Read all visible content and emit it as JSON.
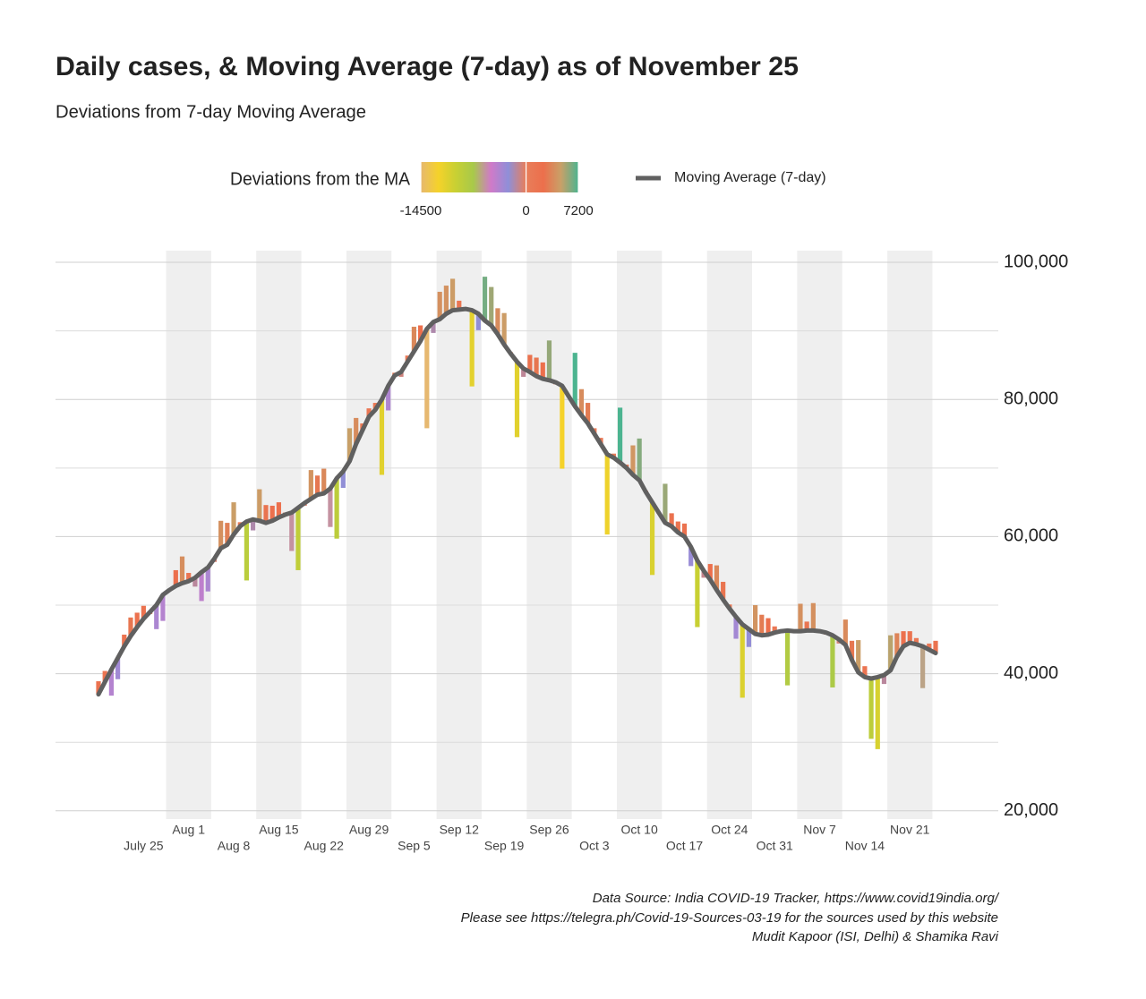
{
  "chart_data": {
    "type": "deviation",
    "title": "Daily cases, & Moving Average (7-day) as of November 25",
    "subtitle": "Deviations from 7-day Moving Average",
    "categories": [
      null,
      null,
      null,
      null,
      null,
      null,
      null,
      "July 25",
      null,
      null,
      null,
      null,
      null,
      null,
      "Aug 1",
      null,
      null,
      null,
      null,
      null,
      null,
      "Aug 8",
      null,
      null,
      null,
      null,
      null,
      null,
      "Aug 15",
      null,
      null,
      null,
      null,
      null,
      null,
      "Aug 22",
      null,
      null,
      null,
      null,
      null,
      null,
      "Aug 29",
      null,
      null,
      null,
      null,
      null,
      null,
      "Sep 5",
      null,
      null,
      null,
      null,
      null,
      null,
      "Sep 12",
      null,
      null,
      null,
      null,
      null,
      null,
      "Sep 19",
      null,
      null,
      null,
      null,
      null,
      null,
      "Sep 26",
      null,
      null,
      null,
      null,
      null,
      null,
      "Oct 3",
      null,
      null,
      null,
      null,
      null,
      null,
      "Oct 10",
      null,
      null,
      null,
      null,
      null,
      null,
      "Oct 17",
      null,
      null,
      null,
      null,
      null,
      null,
      "Oct 24",
      null,
      null,
      null,
      null,
      null,
      null,
      "Oct 31",
      null,
      null,
      null,
      null,
      null,
      null,
      "Nov 7",
      null,
      null,
      null,
      null,
      null,
      null,
      "Nov 14",
      null,
      null,
      null,
      null,
      null,
      null,
      "Nov 21",
      null,
      null,
      null,
      null
    ],
    "values": [
      38900,
      40400,
      36800,
      39200,
      45700,
      48200,
      48900,
      49900,
      48700,
      46500,
      47700,
      52100,
      55100,
      57100,
      54700,
      52700,
      50600,
      52000,
      56300,
      62300,
      62000,
      65000,
      62100,
      53600,
      60900,
      66900,
      64600,
      64500,
      65000,
      63500,
      57900,
      55100,
      64500,
      69700,
      68900,
      69900,
      61400,
      59700,
      67100,
      75800,
      77300,
      76500,
      78700,
      79500,
      69000,
      78400,
      83900,
      83300,
      86400,
      90600,
      90800,
      75800,
      89700,
      95700,
      96600,
      97600,
      94400,
      92900,
      81900,
      90100,
      97900,
      96400,
      93300,
      92600,
      86900,
      74500,
      83300,
      86500,
      86100,
      85400,
      88600,
      82200,
      69900,
      80500,
      86800,
      81500,
      79500,
      75800,
      74400,
      60300,
      72100,
      78800,
      70500,
      73300,
      74300,
      66700,
      54400,
      63500,
      67700,
      63400,
      62200,
      61900,
      55700,
      46800,
      54000,
      56000,
      55800,
      53400,
      50100,
      45100,
      36500,
      43900,
      50000,
      48600,
      48100,
      46900,
      46300,
      38300,
      46100,
      50200,
      47600,
      50300,
      46400,
      45700,
      38000,
      44400,
      47900,
      44800,
      44900,
      41100,
      30500,
      29000,
      38500,
      45600,
      45900,
      46200,
      46200,
      45200,
      37900,
      44400,
      44800
    ],
    "series": [
      {
        "name": "Moving Average (7-day)",
        "color": "#606060",
        "values": [
          37000,
          38800,
          40600,
          42300,
          44000,
          45500,
          46800,
          48000,
          49000,
          50000,
          51500,
          52200,
          52800,
          53200,
          53500,
          54000,
          54800,
          55500,
          56800,
          58300,
          58800,
          60300,
          61500,
          62200,
          62500,
          62300,
          62000,
          62300,
          62800,
          63200,
          63500,
          64200,
          64900,
          65500,
          66100,
          66300,
          67000,
          68500,
          69500,
          71000,
          73500,
          75500,
          77500,
          78500,
          80000,
          82000,
          83500,
          84000,
          85500,
          87000,
          88500,
          90300,
          91300,
          91700,
          92500,
          93000,
          93100,
          93200,
          93000,
          92500,
          91500,
          90800,
          89500,
          88000,
          86700,
          85500,
          84500,
          84000,
          83400,
          83000,
          82800,
          82500,
          82000,
          80500,
          79000,
          77700,
          76500,
          75000,
          73500,
          72000,
          71500,
          70800,
          70000,
          69000,
          68200,
          66500,
          65000,
          63500,
          62000,
          61500,
          60600,
          60000,
          58500,
          56500,
          55000,
          53700,
          52200,
          50800,
          49500,
          48300,
          47200,
          46500,
          45800,
          45600,
          45700,
          46000,
          46200,
          46300,
          46200,
          46200,
          46300,
          46300,
          46200,
          46000,
          45600,
          45000,
          44200,
          42000,
          40200,
          39500,
          39300,
          39500,
          39800,
          40500,
          42500,
          44000,
          44500,
          44300,
          44000,
          43500,
          43000
        ]
      }
    ],
    "colorbar": {
      "title": "Deviations from the MA",
      "lim": [
        -14500,
        7200
      ],
      "ticks": [
        -14500,
        0,
        7200
      ],
      "colors": [
        "#e6b870",
        "#f5d22a",
        "#c8d033",
        "#a8c94a",
        "#d07ac8",
        "#8f8fd8",
        "#e87e5a",
        "#ec6f4c",
        "#c9a068",
        "#4cb490"
      ]
    },
    "ylim": [
      18800,
      101700
    ],
    "yticks": [
      {
        "value": 20000,
        "label": "20,000"
      },
      {
        "value": 40000,
        "label": "40,000"
      },
      {
        "value": 60000,
        "label": "60,000"
      },
      {
        "value": 80000,
        "label": "80,000"
      },
      {
        "value": 100000,
        "label": "100,000"
      }
    ],
    "yminor": [
      30000,
      50000,
      70000,
      90000
    ],
    "grid": true,
    "source": [
      "Data Source: India COVID-19 Tracker, https://www.covid19india.org/",
      "Please see https://telegra.ph/Covid-19-Sources-03-19 for the sources used by this website",
      "Mudit Kapoor (ISI, Delhi) & Shamika Ravi"
    ]
  }
}
